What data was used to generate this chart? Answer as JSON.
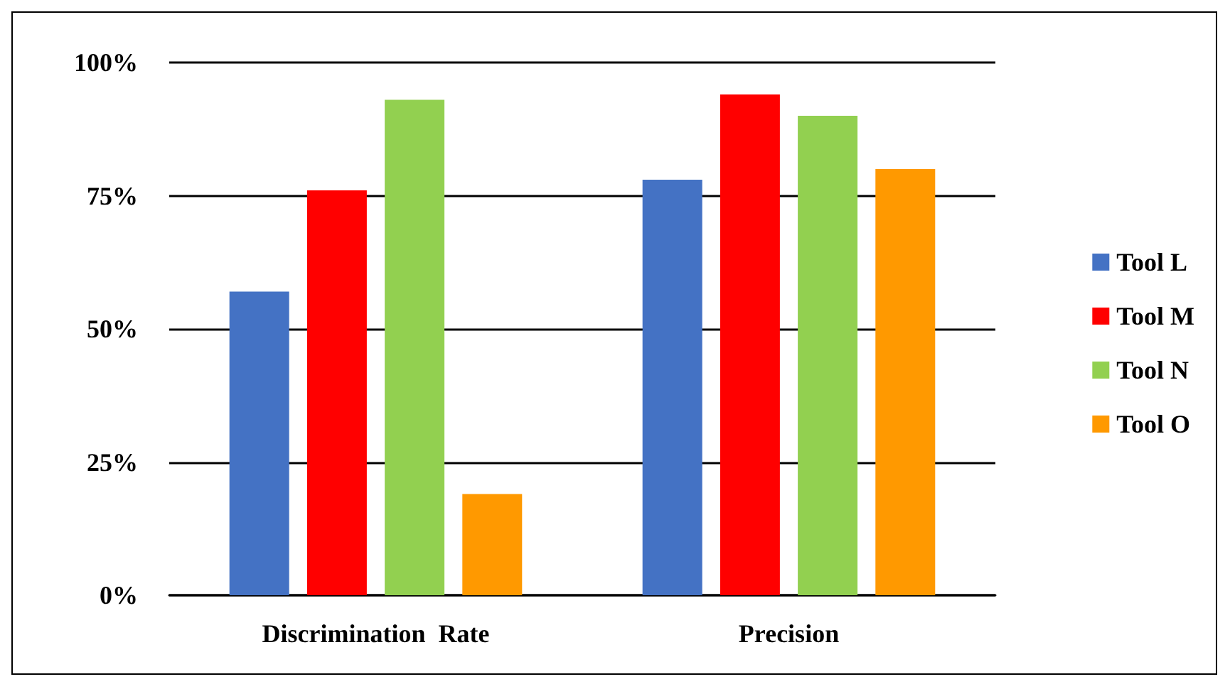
{
  "chart_data": {
    "type": "bar",
    "categories": [
      "Discrimination  Rate",
      "Precision"
    ],
    "series": [
      {
        "name": "Tool L",
        "color": "#4472c4",
        "values": [
          57,
          78
        ]
      },
      {
        "name": "Tool M",
        "color": "#ff0000",
        "values": [
          76,
          94
        ]
      },
      {
        "name": "Tool N",
        "color": "#92d050",
        "values": [
          93,
          90
        ]
      },
      {
        "name": "Tool O",
        "color": "#ff9900",
        "values": [
          19,
          80
        ]
      }
    ],
    "ylim": [
      0,
      100
    ],
    "yticks": [
      {
        "value": 0,
        "label": "0%"
      },
      {
        "value": 25,
        "label": "25%"
      },
      {
        "value": 50,
        "label": "50%"
      },
      {
        "value": 75,
        "label": "75%"
      },
      {
        "value": 100,
        "label": "100%"
      }
    ],
    "grid": "y",
    "legend": "right"
  }
}
